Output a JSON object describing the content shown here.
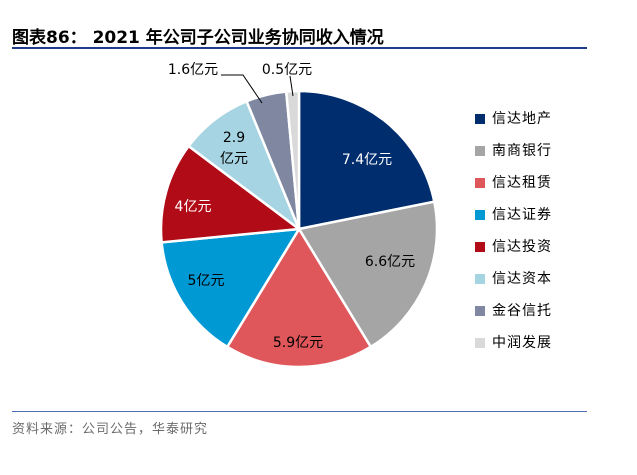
{
  "figure": {
    "title": "图表86：  2021 年公司子公司业务协同收入情况",
    "source": "资料来源：公司公告，华泰研究"
  },
  "chart_data": {
    "type": "pie",
    "title": "",
    "unit": "亿元",
    "legend_position": "right",
    "slices": [
      {
        "name": "信达地产",
        "value": 7.4,
        "label": "7.4亿元",
        "color": "#002d6e",
        "label_color": "#ffffff"
      },
      {
        "name": "南商银行",
        "value": 6.6,
        "label": "6.6亿元",
        "color": "#a5a5a5",
        "label_color": "#000000"
      },
      {
        "name": "信达租赁",
        "value": 5.9,
        "label": "5.9亿元",
        "color": "#e0575b",
        "label_color": "#000000"
      },
      {
        "name": "信达证券",
        "value": 5.0,
        "label": "5亿元",
        "color": "#0099d4",
        "label_color": "#000000"
      },
      {
        "name": "信达投资",
        "value": 4.0,
        "label": "4亿元",
        "color": "#b00b17",
        "label_color": "#ffffff"
      },
      {
        "name": "信达资本",
        "value": 2.9,
        "label": "2.9亿元",
        "color": "#a6d4e3",
        "label_color": "#000000"
      },
      {
        "name": "金谷信托",
        "value": 1.6,
        "label": "1.6亿元",
        "color": "#7f87a1",
        "label_color": "#000000"
      },
      {
        "name": "中润发展",
        "value": 0.5,
        "label": "0.5亿元",
        "color": "#d9d9d9",
        "label_color": "#000000"
      }
    ]
  }
}
